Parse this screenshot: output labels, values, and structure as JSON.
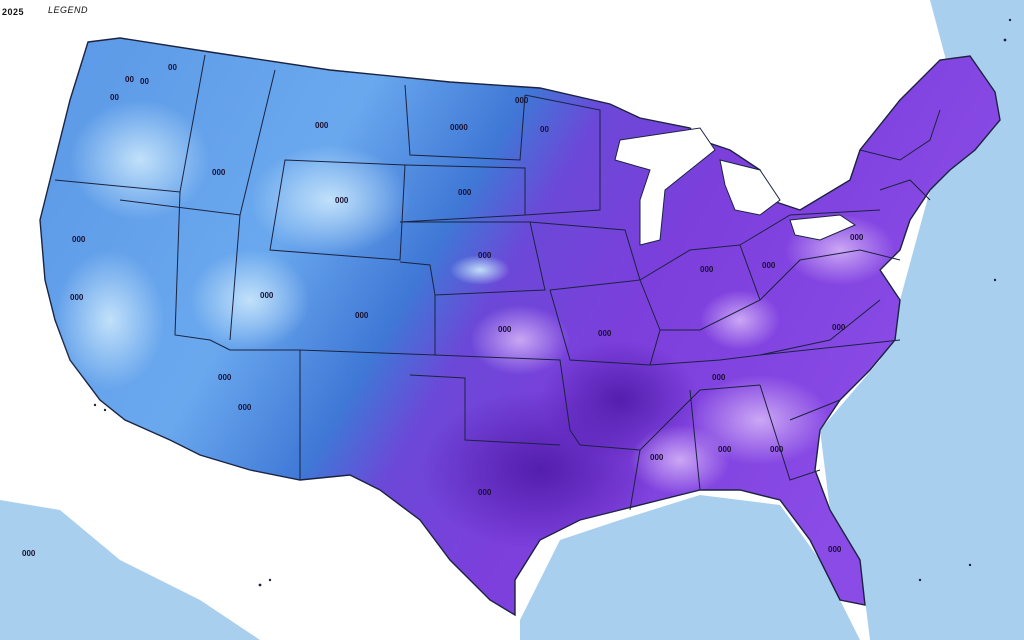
{
  "top_left_text": "2025",
  "top_label": "LEGEND",
  "colors": {
    "ocean": "#a9cfee",
    "land_background": "#ffffff",
    "west_blue": "#4f8fe0",
    "west_light": "#a8d2f4",
    "central_blue": "#3f78d6",
    "east_purple": "#7a3fdc",
    "east_light": "#b98bf0",
    "south_deep": "#5a21b8",
    "border": "#1b2340"
  },
  "region_labels": [
    "00",
    "00",
    "00",
    "00",
    "000",
    "000",
    "000",
    "0000",
    "000",
    "00",
    "000",
    "000",
    "000",
    "000",
    "000",
    "000",
    "000",
    "000",
    "000",
    "000",
    "000",
    "000",
    "000",
    "000",
    "000",
    "000",
    "000",
    "000",
    "000",
    "000"
  ],
  "lower_left_text": "000"
}
